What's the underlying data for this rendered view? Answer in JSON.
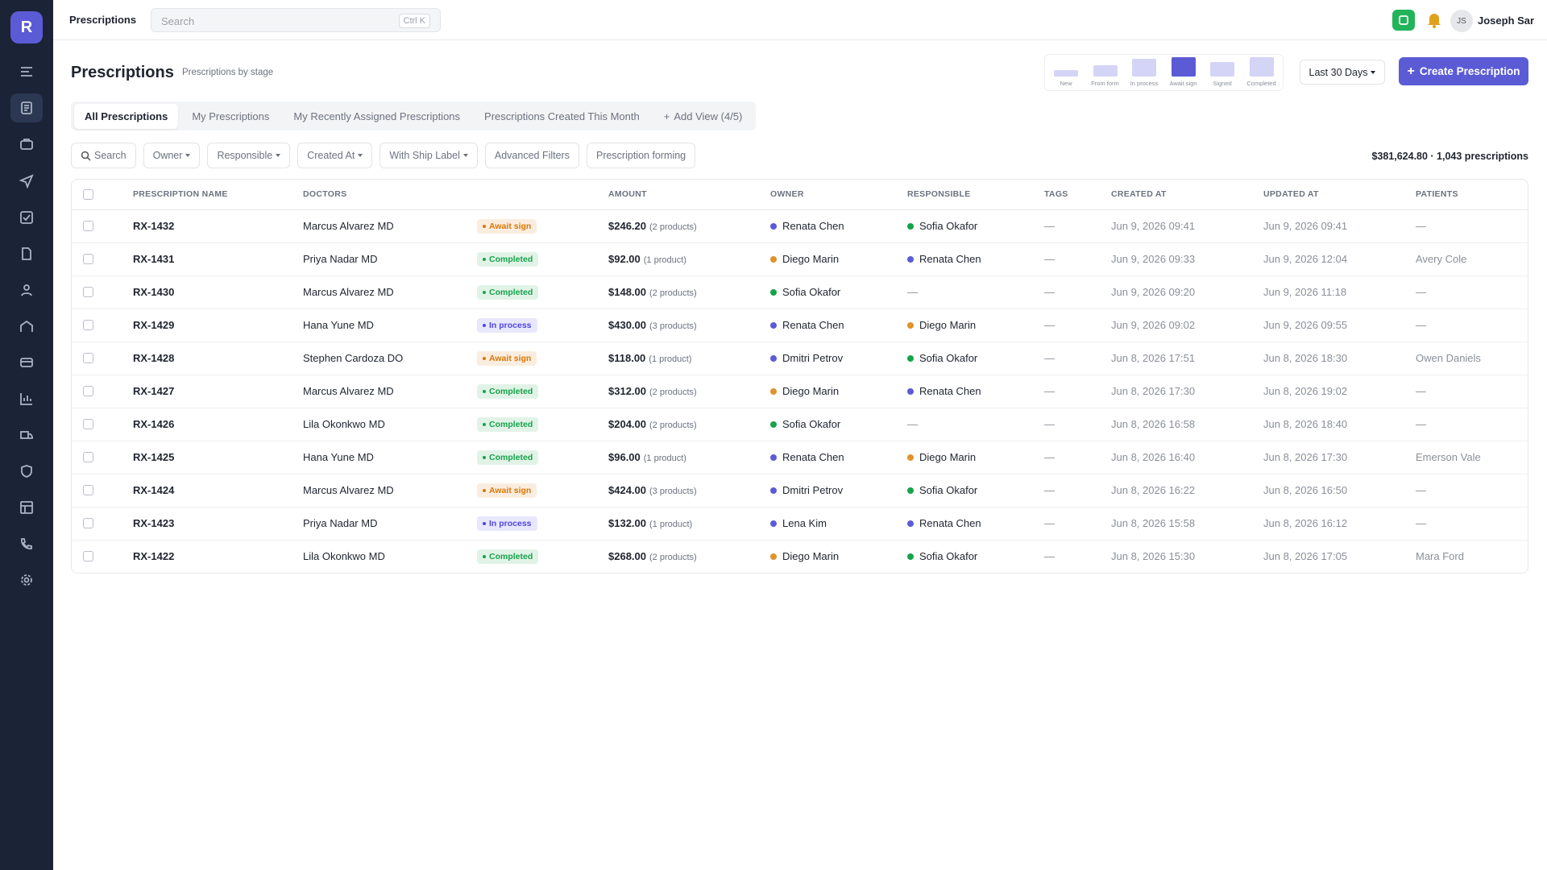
{
  "sidebar": {
    "logo": "R"
  },
  "topbar": {
    "title": "Prescriptions",
    "search_placeholder": "Search",
    "shortcut": "Ctrl K",
    "user_initials": "JS",
    "user_name": "Joseph Sar"
  },
  "header": {
    "title": "Prescriptions",
    "subtitle": "Prescriptions by stage",
    "stages": [
      {
        "label": "New",
        "value": 3,
        "color": "#d4d4f7"
      },
      {
        "label": "From form",
        "value": 5,
        "color": "#d4d4f7"
      },
      {
        "label": "In process",
        "value": 8,
        "color": "#d4d4f7"
      },
      {
        "label": "Await sign",
        "value": 8.5,
        "color": "#5b5bd6"
      },
      {
        "label": "Signed",
        "value": 6.5,
        "color": "#d4d4f7"
      },
      {
        "label": "Completed",
        "value": 8.5,
        "color": "#d4d4f7"
      }
    ],
    "date_range": "Last 30 Days",
    "create_button": "Create Prescription"
  },
  "tabs": [
    "All Prescriptions",
    "My Prescriptions",
    "My Recently Assigned Prescriptions",
    "Prescriptions Created This Month"
  ],
  "add_view": "Add View (4/5)",
  "filters": {
    "search": "Search",
    "dropdowns": [
      "Owner",
      "Responsible",
      "Created At",
      "With Ship Label"
    ],
    "buttons": [
      "Advanced Filters",
      "Prescription forming"
    ]
  },
  "summary": "$381,624.80 · 1,043 prescriptions",
  "table": {
    "columns": [
      "PRESCRIPTION NAME",
      "DOCTORS",
      "AMOUNT",
      "OWNER",
      "RESPONSIBLE",
      "TAGS",
      "CREATED AT",
      "UPDATED AT",
      "PATIENTS"
    ],
    "rows": [
      {
        "name": "RX-1432",
        "doctor": "Marcus Alvarez MD",
        "status": {
          "label": "Await sign",
          "color": "#d97706"
        },
        "amount": "$246.20",
        "products": "(2 products)",
        "owner": {
          "name": "Renata Chen",
          "color": "#5b5bd6"
        },
        "responsible": {
          "name": "Sofia Okafor",
          "color": "#16a34a"
        },
        "tags": "—",
        "created": "Jun 9, 2026 09:41",
        "updated": "Jun 9, 2026 09:41",
        "patient": "—"
      },
      {
        "name": "RX-1431",
        "doctor": "Priya Nadar MD",
        "status": {
          "label": "Completed",
          "color": "#16a34a"
        },
        "amount": "$92.00",
        "products": "(1 product)",
        "owner": {
          "name": "Diego Marin",
          "color": "#e0922b"
        },
        "responsible": {
          "name": "Renata Chen",
          "color": "#5b5bd6"
        },
        "tags": "—",
        "created": "Jun 9, 2026 09:33",
        "updated": "Jun 9, 2026 12:04",
        "patient": "Avery Cole"
      },
      {
        "name": "RX-1430",
        "doctor": "Marcus Alvarez MD",
        "status": {
          "label": "Completed",
          "color": "#16a34a"
        },
        "amount": "$148.00",
        "products": "(2 products)",
        "owner": {
          "name": "Sofia Okafor",
          "color": "#16a34a"
        },
        "responsible": {
          "name": "—"
        },
        "tags": "—",
        "created": "Jun 9, 2026 09:20",
        "updated": "Jun 9, 2026 11:18",
        "patient": "—"
      },
      {
        "name": "RX-1429",
        "doctor": "Hana Yune MD",
        "status": {
          "label": "In process",
          "color": "#4f46e5"
        },
        "amount": "$430.00",
        "products": "(3 products)",
        "owner": {
          "name": "Renata Chen",
          "color": "#5b5bd6"
        },
        "responsible": {
          "name": "Diego Marin",
          "color": "#e0922b"
        },
        "tags": "—",
        "created": "Jun 9, 2026 09:02",
        "updated": "Jun 9, 2026 09:55",
        "patient": "—"
      },
      {
        "name": "RX-1428",
        "doctor": "Stephen Cardoza DO",
        "status": {
          "label": "Await sign",
          "color": "#d97706"
        },
        "amount": "$118.00",
        "products": "(1 product)",
        "owner": {
          "name": "Dmitri Petrov",
          "color": "#5b5bd6"
        },
        "responsible": {
          "name": "Sofia Okafor",
          "color": "#16a34a"
        },
        "tags": "—",
        "created": "Jun 8, 2026 17:51",
        "updated": "Jun 8, 2026 18:30",
        "patient": "Owen Daniels"
      },
      {
        "name": "RX-1427",
        "doctor": "Marcus Alvarez MD",
        "status": {
          "label": "Completed",
          "color": "#16a34a"
        },
        "amount": "$312.00",
        "products": "(2 products)",
        "owner": {
          "name": "Diego Marin",
          "color": "#e0922b"
        },
        "responsible": {
          "name": "Renata Chen",
          "color": "#5b5bd6"
        },
        "tags": "—",
        "created": "Jun 8, 2026 17:30",
        "updated": "Jun 8, 2026 19:02",
        "patient": "—"
      },
      {
        "name": "RX-1426",
        "doctor": "Lila Okonkwo MD",
        "status": {
          "label": "Completed",
          "color": "#16a34a"
        },
        "amount": "$204.00",
        "products": "(2 products)",
        "owner": {
          "name": "Sofia Okafor",
          "color": "#16a34a"
        },
        "responsible": {
          "name": "—"
        },
        "tags": "—",
        "created": "Jun 8, 2026 16:58",
        "updated": "Jun 8, 2026 18:40",
        "patient": "—"
      },
      {
        "name": "RX-1425",
        "doctor": "Hana Yune MD",
        "status": {
          "label": "Completed",
          "color": "#16a34a"
        },
        "amount": "$96.00",
        "products": "(1 product)",
        "owner": {
          "name": "Renata Chen",
          "color": "#5b5bd6"
        },
        "responsible": {
          "name": "Diego Marin",
          "color": "#e0922b"
        },
        "tags": "—",
        "created": "Jun 8, 2026 16:40",
        "updated": "Jun 8, 2026 17:30",
        "patient": "Emerson Vale"
      },
      {
        "name": "RX-1424",
        "doctor": "Marcus Alvarez MD",
        "status": {
          "label": "Await sign",
          "color": "#d97706"
        },
        "amount": "$424.00",
        "products": "(3 products)",
        "owner": {
          "name": "Dmitri Petrov",
          "color": "#5b5bd6"
        },
        "responsible": {
          "name": "Sofia Okafor",
          "color": "#16a34a"
        },
        "tags": "—",
        "created": "Jun 8, 2026 16:22",
        "updated": "Jun 8, 2026 16:50",
        "patient": "—"
      },
      {
        "name": "RX-1423",
        "doctor": "Priya Nadar MD",
        "status": {
          "label": "In process",
          "color": "#4f46e5"
        },
        "amount": "$132.00",
        "products": "(1 product)",
        "owner": {
          "name": "Lena Kim",
          "color": "#5b5bd6"
        },
        "responsible": {
          "name": "Renata Chen",
          "color": "#5b5bd6"
        },
        "tags": "—",
        "created": "Jun 8, 2026 15:58",
        "updated": "Jun 8, 2026 16:12",
        "patient": "—"
      },
      {
        "name": "RX-1422",
        "doctor": "Lila Okonkwo MD",
        "status": {
          "label": "Completed",
          "color": "#16a34a"
        },
        "amount": "$268.00",
        "products": "(2 products)",
        "owner": {
          "name": "Diego Marin",
          "color": "#e0922b"
        },
        "responsible": {
          "name": "Sofia Okafor",
          "color": "#16a34a"
        },
        "tags": "—",
        "created": "Jun 8, 2026 15:30",
        "updated": "Jun 8, 2026 17:05",
        "patient": "Mara Ford"
      }
    ]
  }
}
